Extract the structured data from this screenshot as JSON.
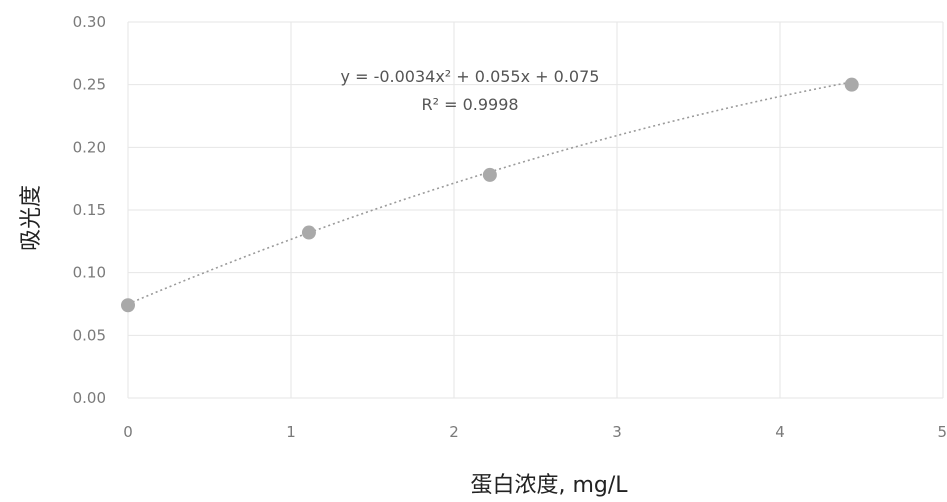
{
  "chart_data": {
    "type": "scatter",
    "title": "",
    "xlabel": "蛋白浓度, mg/L",
    "ylabel": "吸光度",
    "xlim": [
      0,
      5
    ],
    "ylim": [
      0,
      0.3
    ],
    "x_ticks": [
      "0",
      "1",
      "2",
      "3",
      "4",
      "5"
    ],
    "y_ticks": [
      "0.00",
      "0.05",
      "0.10",
      "0.15",
      "0.20",
      "0.25",
      "0.30"
    ],
    "grid": true,
    "points": [
      {
        "x": 0,
        "y": 0.074
      },
      {
        "x": 1.11,
        "y": 0.132
      },
      {
        "x": 2.22,
        "y": 0.178
      },
      {
        "x": 4.44,
        "y": 0.25
      }
    ],
    "trendline": {
      "type": "polynomial",
      "coefficients": [
        -0.0034,
        0.055,
        0.075
      ],
      "equation": "y = -0.0034x² + 0.055x + 0.075",
      "r2": "R² = 0.9998"
    }
  }
}
